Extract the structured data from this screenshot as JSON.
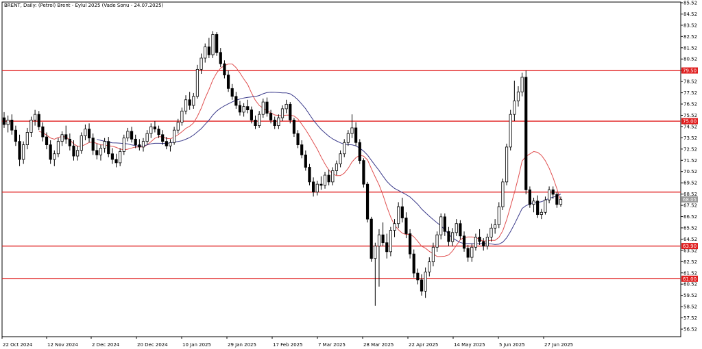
{
  "header": {
    "title": "BRENT, Daily:  (Petrol) Brent - Eylul 2025 (Vade Sonu - 24.07.2025)"
  },
  "chart_data": {
    "type": "candlestick",
    "title": "BRENT, Daily:  (Petrol) Brent - Eylul 2025 (Vade Sonu - 24.07.2025)",
    "y_ticks": [
      "85.52",
      "84.52",
      "83.52",
      "82.52",
      "81.52",
      "80.52",
      "79.52",
      "78.52",
      "77.52",
      "76.52",
      "75.52",
      "74.52",
      "73.52",
      "72.52",
      "71.52",
      "70.52",
      "69.52",
      "68.52",
      "67.52",
      "66.52",
      "65.52",
      "64.52",
      "63.52",
      "62.52",
      "61.52",
      "60.52",
      "59.52",
      "58.52",
      "57.52",
      "56.52"
    ],
    "x_ticks": [
      "22 Oct 2024",
      "12 Nov 2024",
      "2 Dec 2024",
      "20 Dec 2024",
      "10 Jan 2025",
      "29 Jan 2025",
      "17 Feb 2025",
      "7 Mar 2025",
      "28 Mar 2025",
      "22 Apr 2025",
      "14 May 2025",
      "5 Jun 2025",
      "27 Jun 2025"
    ],
    "ylim": [
      56.0,
      86.0
    ],
    "levels": [
      {
        "value": "79.50",
        "badge": true
      },
      {
        "value": "75.00",
        "badge": true
      },
      {
        "value": "68.70",
        "badge": false
      },
      {
        "value": "63.90",
        "badge": true
      },
      {
        "value": "61.00",
        "badge": true
      }
    ],
    "current_price": "68.05",
    "colors": {
      "level": "#e01f1f",
      "ma_fast": "#e05050",
      "ma_slow": "#3a3a8a",
      "badge": "#e01f1f",
      "price_badge": "#9a9a9a"
    },
    "candles": [
      [
        75.3,
        75.8,
        74.4,
        74.7
      ],
      [
        74.7,
        75.5,
        74.0,
        75.1
      ],
      [
        75.1,
        75.6,
        73.8,
        74.2
      ],
      [
        74.2,
        74.6,
        72.8,
        73.2
      ],
      [
        73.2,
        73.8,
        71.0,
        71.6
      ],
      [
        71.6,
        73.2,
        71.2,
        72.9
      ],
      [
        72.9,
        74.4,
        72.5,
        74.0
      ],
      [
        74.0,
        75.4,
        73.6,
        75.1
      ],
      [
        75.1,
        76.0,
        74.6,
        75.6
      ],
      [
        75.6,
        75.9,
        74.2,
        74.5
      ],
      [
        74.5,
        74.9,
        73.2,
        73.6
      ],
      [
        73.6,
        74.0,
        72.5,
        72.9
      ],
      [
        72.9,
        73.3,
        71.2,
        71.6
      ],
      [
        71.6,
        72.4,
        71.0,
        72.1
      ],
      [
        72.1,
        73.5,
        71.8,
        73.2
      ],
      [
        73.2,
        74.1,
        72.8,
        73.8
      ],
      [
        73.8,
        74.6,
        73.0,
        73.4
      ],
      [
        73.4,
        73.9,
        72.4,
        72.8
      ],
      [
        72.8,
        73.3,
        71.5,
        71.9
      ],
      [
        71.9,
        72.8,
        71.5,
        72.4
      ],
      [
        72.4,
        74.0,
        72.1,
        73.7
      ],
      [
        73.7,
        74.7,
        73.3,
        74.3
      ],
      [
        74.3,
        74.8,
        73.1,
        73.5
      ],
      [
        73.5,
        73.9,
        72.0,
        72.4
      ],
      [
        72.4,
        73.0,
        71.6,
        72.0
      ],
      [
        72.0,
        72.9,
        71.5,
        72.6
      ],
      [
        72.6,
        73.5,
        72.2,
        73.2
      ],
      [
        73.2,
        73.6,
        71.8,
        72.1
      ],
      [
        72.1,
        72.6,
        71.2,
        71.6
      ],
      [
        71.6,
        72.1,
        70.9,
        71.3
      ],
      [
        71.3,
        72.6,
        71.0,
        72.3
      ],
      [
        72.3,
        73.8,
        72.0,
        73.5
      ],
      [
        73.5,
        74.4,
        73.2,
        74.1
      ],
      [
        74.1,
        74.5,
        73.1,
        73.4
      ],
      [
        73.4,
        73.8,
        72.6,
        72.9
      ],
      [
        72.9,
        73.4,
        72.4,
        72.7
      ],
      [
        72.7,
        73.5,
        72.3,
        73.2
      ],
      [
        73.2,
        74.2,
        72.9,
        73.9
      ],
      [
        73.9,
        74.8,
        73.5,
        74.5
      ],
      [
        74.5,
        75.0,
        74.0,
        74.3
      ],
      [
        74.3,
        74.6,
        73.5,
        73.8
      ],
      [
        73.8,
        74.2,
        72.9,
        73.2
      ],
      [
        73.2,
        73.6,
        72.5,
        72.8
      ],
      [
        72.8,
        73.4,
        72.3,
        73.1
      ],
      [
        73.1,
        74.5,
        72.9,
        74.2
      ],
      [
        74.2,
        75.2,
        73.9,
        74.9
      ],
      [
        74.9,
        76.2,
        74.6,
        75.9
      ],
      [
        75.9,
        77.3,
        75.6,
        76.9
      ],
      [
        76.9,
        77.6,
        76.0,
        76.4
      ],
      [
        76.4,
        77.5,
        76.1,
        77.2
      ],
      [
        77.2,
        80.0,
        77.0,
        79.6
      ],
      [
        79.6,
        81.0,
        79.2,
        80.6
      ],
      [
        80.6,
        81.9,
        80.2,
        81.6
      ],
      [
        81.6,
        82.4,
        80.6,
        80.9
      ],
      [
        80.9,
        83.0,
        80.6,
        82.7
      ],
      [
        82.7,
        82.9,
        80.8,
        81.1
      ],
      [
        81.1,
        81.5,
        79.8,
        80.1
      ],
      [
        80.1,
        80.4,
        78.8,
        79.1
      ],
      [
        79.1,
        79.5,
        77.6,
        77.9
      ],
      [
        77.9,
        78.3,
        76.9,
        77.2
      ],
      [
        77.2,
        77.6,
        76.1,
        76.4
      ],
      [
        76.4,
        76.8,
        75.5,
        75.8
      ],
      [
        75.8,
        76.6,
        75.4,
        76.3
      ],
      [
        76.3,
        76.9,
        75.7,
        76.0
      ],
      [
        76.0,
        76.3,
        74.8,
        75.1
      ],
      [
        75.1,
        75.5,
        74.3,
        74.6
      ],
      [
        74.6,
        75.9,
        74.4,
        75.6
      ],
      [
        75.6,
        77.0,
        75.3,
        76.7
      ],
      [
        76.7,
        77.1,
        75.4,
        75.7
      ],
      [
        75.7,
        76.0,
        74.8,
        75.1
      ],
      [
        75.1,
        75.4,
        74.3,
        74.6
      ],
      [
        74.6,
        75.6,
        74.3,
        75.3
      ],
      [
        75.3,
        76.4,
        75.0,
        76.1
      ],
      [
        76.1,
        76.9,
        75.7,
        76.5
      ],
      [
        76.5,
        76.7,
        74.8,
        75.1
      ],
      [
        75.1,
        75.3,
        73.6,
        73.9
      ],
      [
        73.9,
        74.2,
        72.6,
        72.9
      ],
      [
        72.9,
        73.3,
        71.7,
        72.0
      ],
      [
        72.0,
        72.4,
        70.6,
        70.9
      ],
      [
        70.9,
        71.2,
        69.3,
        69.6
      ],
      [
        69.6,
        70.0,
        68.3,
        68.7
      ],
      [
        68.7,
        69.7,
        68.4,
        69.4
      ],
      [
        69.4,
        70.1,
        68.9,
        69.3
      ],
      [
        69.3,
        70.5,
        69.0,
        70.2
      ],
      [
        70.2,
        70.7,
        69.3,
        69.6
      ],
      [
        69.6,
        70.9,
        69.3,
        70.6
      ],
      [
        70.6,
        71.5,
        70.2,
        71.2
      ],
      [
        71.2,
        72.4,
        70.9,
        72.1
      ],
      [
        72.1,
        73.4,
        71.8,
        73.1
      ],
      [
        73.1,
        74.2,
        72.8,
        73.9
      ],
      [
        73.9,
        75.6,
        73.5,
        74.4
      ],
      [
        74.4,
        74.9,
        72.8,
        73.1
      ],
      [
        73.1,
        73.4,
        71.2,
        71.5
      ],
      [
        71.5,
        71.7,
        69.1,
        69.4
      ],
      [
        69.4,
        69.6,
        66.0,
        66.3
      ],
      [
        66.3,
        66.5,
        62.5,
        62.8
      ],
      [
        62.8,
        64.2,
        58.6,
        63.9
      ],
      [
        63.9,
        65.4,
        60.3,
        64.9
      ],
      [
        64.9,
        66.0,
        63.9,
        64.2
      ],
      [
        64.2,
        65.0,
        62.8,
        63.4
      ],
      [
        63.4,
        65.6,
        63.0,
        65.3
      ],
      [
        65.3,
        66.3,
        64.7,
        65.9
      ],
      [
        65.9,
        67.8,
        65.5,
        67.4
      ],
      [
        67.4,
        68.2,
        66.0,
        66.4
      ],
      [
        66.4,
        66.9,
        64.6,
        65.0
      ],
      [
        65.0,
        65.4,
        62.8,
        63.2
      ],
      [
        63.2,
        63.6,
        61.1,
        61.5
      ],
      [
        61.5,
        61.9,
        60.5,
        60.9
      ],
      [
        60.9,
        61.4,
        59.5,
        59.9
      ],
      [
        59.9,
        62.0,
        59.3,
        61.6
      ],
      [
        61.6,
        62.9,
        61.2,
        62.5
      ],
      [
        62.5,
        64.2,
        62.1,
        63.8
      ],
      [
        63.8,
        65.2,
        63.4,
        64.9
      ],
      [
        64.9,
        66.8,
        64.5,
        66.5
      ],
      [
        66.5,
        66.8,
        64.8,
        65.2
      ],
      [
        65.2,
        65.6,
        63.9,
        64.3
      ],
      [
        64.3,
        65.5,
        63.9,
        65.1
      ],
      [
        65.1,
        66.3,
        64.8,
        65.9
      ],
      [
        65.9,
        66.2,
        64.5,
        64.8
      ],
      [
        64.8,
        65.2,
        63.4,
        63.7
      ],
      [
        63.7,
        64.0,
        62.5,
        62.9
      ],
      [
        62.9,
        64.1,
        62.5,
        63.8
      ],
      [
        63.8,
        65.0,
        63.5,
        64.7
      ],
      [
        64.7,
        65.4,
        64.0,
        64.3
      ],
      [
        64.3,
        64.6,
        63.5,
        63.9
      ],
      [
        63.9,
        65.0,
        63.6,
        64.7
      ],
      [
        64.7,
        65.9,
        64.3,
        65.5
      ],
      [
        65.5,
        66.3,
        65.0,
        65.8
      ],
      [
        65.8,
        67.8,
        65.5,
        67.4
      ],
      [
        67.4,
        69.9,
        67.1,
        69.6
      ],
      [
        69.6,
        73.0,
        69.3,
        72.7
      ],
      [
        72.7,
        76.0,
        72.4,
        75.6
      ],
      [
        75.6,
        78.6,
        75.0,
        76.8
      ],
      [
        76.8,
        78.1,
        76.3,
        77.6
      ],
      [
        77.6,
        79.3,
        77.2,
        78.9
      ],
      [
        78.9,
        79.5,
        68.5,
        68.9
      ],
      [
        68.9,
        69.2,
        67.3,
        67.6
      ],
      [
        67.6,
        68.2,
        66.9,
        67.9
      ],
      [
        67.9,
        68.4,
        66.4,
        66.7
      ],
      [
        66.7,
        67.2,
        66.3,
        66.9
      ],
      [
        66.9,
        68.3,
        66.7,
        68.0
      ],
      [
        68.0,
        69.2,
        67.7,
        68.9
      ],
      [
        68.9,
        69.2,
        68.1,
        68.5
      ],
      [
        68.5,
        68.7,
        67.3,
        67.6
      ],
      [
        67.6,
        68.3,
        67.4,
        68.05
      ]
    ]
  }
}
